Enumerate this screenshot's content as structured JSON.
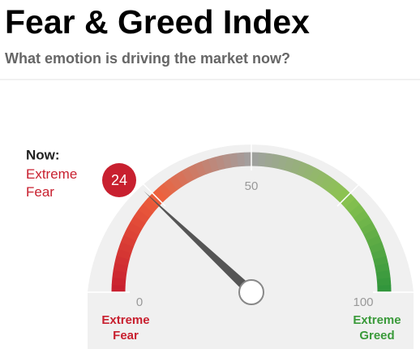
{
  "chart_data": {
    "type": "gauge",
    "title": "Fear & Greed Index",
    "subtitle": "What emotion is driving the market now?",
    "now_label": "Now:",
    "value": 24,
    "value_label": "Extreme Fear",
    "color": "#c8202f",
    "ylim": [
      0,
      100
    ],
    "yticks": [
      0,
      50,
      100
    ],
    "end_labels": [
      "Extreme Fear",
      "Extreme Greed"
    ],
    "end_colors": [
      "#c8202f",
      "#3a9a3a"
    ]
  }
}
